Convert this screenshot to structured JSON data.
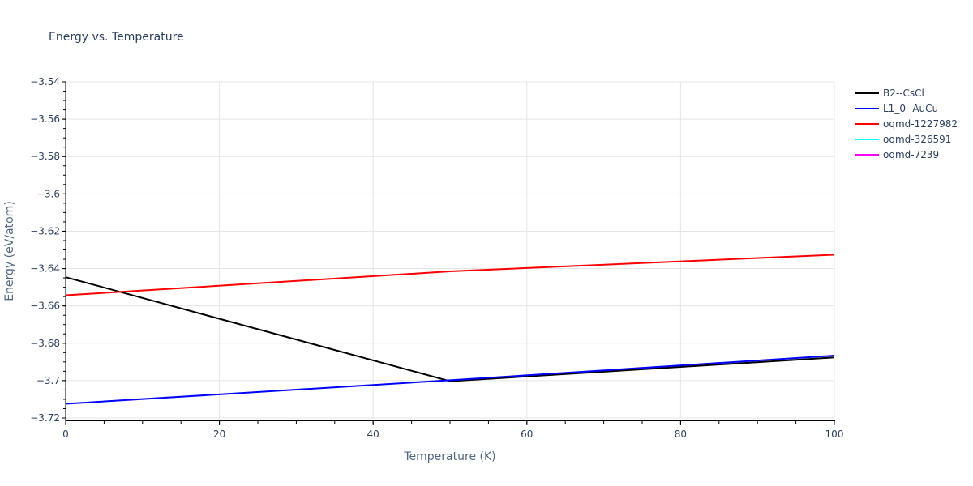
{
  "chart_data": {
    "type": "line",
    "title": "Energy vs. Temperature",
    "xlabel": "Temperature (K)",
    "ylabel": "Energy (eV/atom)",
    "xlim": [
      0,
      100
    ],
    "ylim": [
      -3.72,
      -3.54
    ],
    "x_ticks": [
      0,
      20,
      40,
      60,
      80,
      100
    ],
    "x_tick_labels": [
      "0",
      "20",
      "40",
      "60",
      "80",
      "100"
    ],
    "y_ticks": [
      -3.54,
      -3.56,
      -3.58,
      -3.6,
      -3.62,
      -3.64,
      -3.66,
      -3.68,
      -3.7,
      -3.72
    ],
    "y_tick_labels": [
      "−3.54",
      "−3.56",
      "−3.58",
      "−3.6",
      "−3.62",
      "−3.64",
      "−3.66",
      "−3.68",
      "−3.7",
      "−3.72"
    ],
    "x_minor_step": 5,
    "y_minor_step": 0.005,
    "grid": true,
    "legend_position": "right-top",
    "series": [
      {
        "name": "B2--CsCl",
        "color": "#000000",
        "x": [
          0,
          50,
          100
        ],
        "y": [
          -3.6446,
          -3.7003,
          -3.6876
        ]
      },
      {
        "name": "L1_0--AuCu",
        "color": "#0000ff",
        "x": [
          0,
          50,
          100
        ],
        "y": [
          -3.7124,
          -3.6998,
          -3.6866
        ]
      },
      {
        "name": "oqmd-1227982",
        "color": "#ff0000",
        "x": [
          0,
          50,
          100
        ],
        "y": [
          -3.6543,
          -3.6415,
          -3.6326
        ]
      },
      {
        "name": "oqmd-326591",
        "color": "#00ffff",
        "x": [],
        "y": []
      },
      {
        "name": "oqmd-7239",
        "color": "#ff00ff",
        "x": [],
        "y": []
      }
    ]
  }
}
